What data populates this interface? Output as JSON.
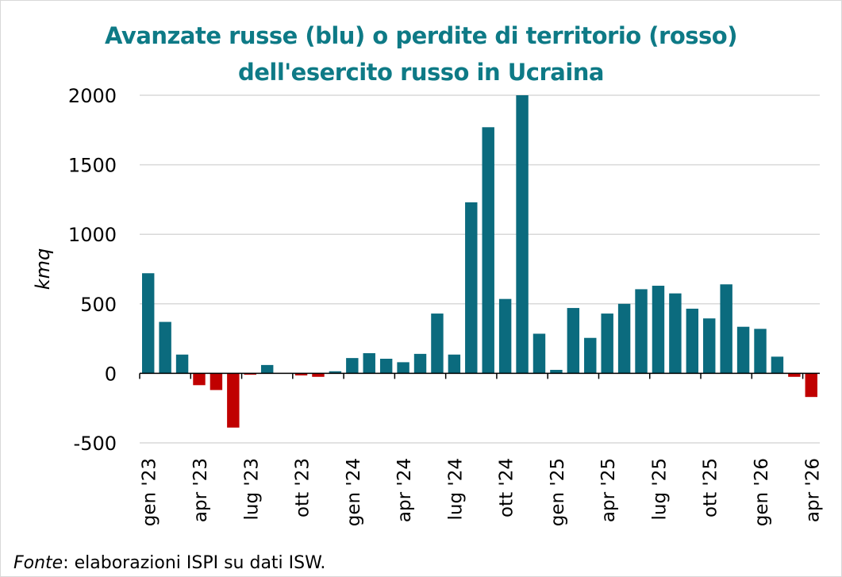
{
  "chart_data": {
    "type": "bar",
    "title_lines": [
      "Avanzate russe (blu) o perdite di territorio (rosso)",
      "dell'esercito russo in Ucraina"
    ],
    "ylabel": "kmq",
    "xlabel": "",
    "ylim": [
      -500,
      2000
    ],
    "yticks": [
      -500,
      0,
      500,
      1000,
      1500,
      2000
    ],
    "grid": true,
    "colors": {
      "positive": "#0b6b7e",
      "negative": "#c00000"
    },
    "tick_labels": [
      {
        "index": 0,
        "label": "gen '23"
      },
      {
        "index": 3,
        "label": "apr '23"
      },
      {
        "index": 6,
        "label": "lug '23"
      },
      {
        "index": 9,
        "label": "ott '23"
      },
      {
        "index": 12,
        "label": "gen '24"
      },
      {
        "index": 15,
        "label": "apr '24"
      },
      {
        "index": 18,
        "label": "lug '24"
      },
      {
        "index": 21,
        "label": "ott '24"
      },
      {
        "index": 24,
        "label": "gen '25"
      },
      {
        "index": 27,
        "label": "apr '25"
      },
      {
        "index": 30,
        "label": "lug '25"
      },
      {
        "index": 33,
        "label": "ott '25"
      },
      {
        "index": 36,
        "label": "gen '26"
      },
      {
        "index": 39,
        "label": "apr '26"
      }
    ],
    "values": [
      720,
      370,
      135,
      -85,
      -120,
      -390,
      -10,
      60,
      0,
      -15,
      -25,
      15,
      110,
      145,
      105,
      80,
      140,
      430,
      135,
      1230,
      1770,
      535,
      2000,
      285,
      25,
      470,
      255,
      430,
      500,
      605,
      630,
      575,
      465,
      395,
      640,
      335,
      320,
      120,
      -25,
      -170
    ]
  },
  "source": {
    "label": "Fonte",
    "text": ": elaborazioni ISPI su dati ISW."
  }
}
